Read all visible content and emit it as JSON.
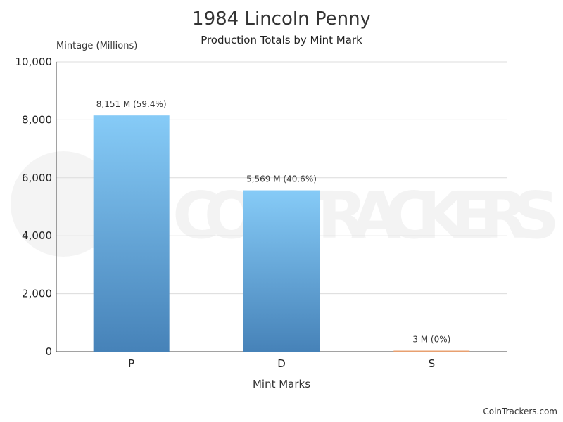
{
  "chart_data": {
    "type": "bar",
    "title": "1984 Lincoln Penny",
    "subtitle": "Production Totals by Mint Mark",
    "ylabel": "Mintage (Millions)",
    "xlabel": "Mint Marks",
    "categories": [
      "P",
      "D",
      "S"
    ],
    "values": [
      8151,
      5569,
      3
    ],
    "data_labels": [
      "8,151 M (59.4%)",
      "5,569 M (40.6%)",
      "3 M (0%)"
    ],
    "bar_colors": [
      "#5a9fd6",
      "#5a9fd6",
      "#e8a070"
    ],
    "ylim": [
      0,
      10000
    ],
    "yticks": [
      0,
      2000,
      4000,
      6000,
      8000,
      10000
    ],
    "ytick_labels": [
      "0",
      "2,000",
      "4,000",
      "6,000",
      "8,000",
      "10,000"
    ],
    "grid": true,
    "legend": "none"
  },
  "watermark_text": "COINTRACKERS",
  "credit": "CoinTrackers.com"
}
